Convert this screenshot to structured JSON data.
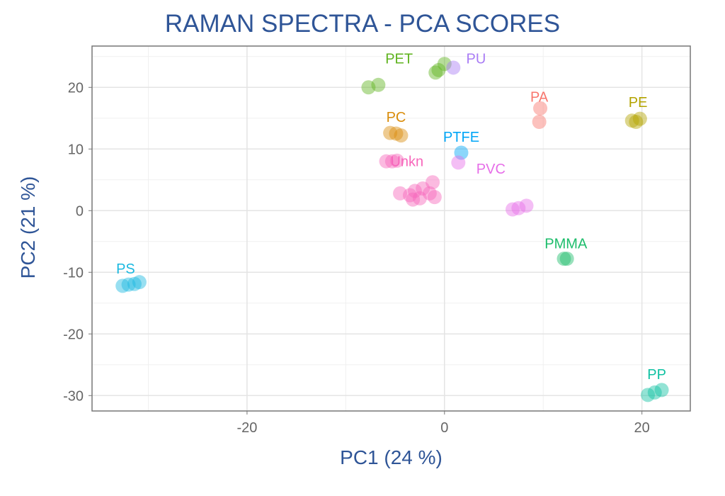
{
  "chart_data": {
    "type": "scatter",
    "title": "RAMAN SPECTRA - PCA SCORES",
    "xlabel": "PC1 (24 %)",
    "ylabel": "PC2 (21 %)",
    "xlim": [
      -35.7,
      24.9
    ],
    "ylim": [
      -32.5,
      26.7
    ],
    "xticks": [
      -20,
      0,
      20
    ],
    "yticks": [
      -30,
      -20,
      -10,
      0,
      10,
      20
    ],
    "grid": true,
    "legend": "none (direct labels)",
    "groups": [
      {
        "label": "PET",
        "color": "#5fb31e",
        "label_pos": [
          -4.6,
          24.7
        ],
        "points": [
          [
            -7.7,
            20.0
          ],
          [
            -6.7,
            20.4
          ],
          [
            -0.9,
            22.4
          ],
          [
            -0.6,
            22.8
          ],
          [
            0,
            23.8
          ]
        ]
      },
      {
        "label": "PU",
        "color": "#a97cf5",
        "label_pos": [
          3.2,
          24.7
        ],
        "points": [
          [
            0.9,
            23.2
          ]
        ]
      },
      {
        "label": "PC",
        "color": "#d98c0a",
        "label_pos": [
          -4.9,
          15.2
        ],
        "points": [
          [
            -5.5,
            12.6
          ],
          [
            -4.9,
            12.5
          ],
          [
            -4.4,
            12.2
          ]
        ]
      },
      {
        "label": "PTFE",
        "color": "#00a6f7",
        "label_pos": [
          1.7,
          12.0
        ],
        "points": [
          [
            1.7,
            9.4
          ]
        ]
      },
      {
        "label": "PVC",
        "color": "#e66ee8",
        "label_pos": [
          4.7,
          6.8
        ],
        "points": [
          [
            1.4,
            7.8
          ],
          [
            6.9,
            0.2
          ],
          [
            7.5,
            0.4
          ],
          [
            8.3,
            0.8
          ]
        ]
      },
      {
        "label": "Unkn",
        "color": "#f766bb",
        "label_pos": [
          -3.8,
          8.0
        ],
        "points": [
          [
            -5.9,
            8.0
          ],
          [
            -5.3,
            8.0
          ],
          [
            -4.8,
            8.1
          ],
          [
            -4.5,
            2.8
          ],
          [
            -3.5,
            2.5
          ],
          [
            -3.0,
            3.2
          ],
          [
            -2.5,
            2.0
          ],
          [
            -2.2,
            3.6
          ],
          [
            -1.5,
            2.8
          ],
          [
            -1.0,
            2.2
          ],
          [
            -1.2,
            4.6
          ],
          [
            -3.2,
            1.8
          ]
        ]
      },
      {
        "label": "PA",
        "color": "#f8766d",
        "label_pos": [
          9.6,
          18.5
        ],
        "points": [
          [
            9.7,
            16.6
          ],
          [
            9.6,
            14.4
          ]
        ]
      },
      {
        "label": "PE",
        "color": "#b3a300",
        "label_pos": [
          19.6,
          17.6
        ],
        "points": [
          [
            19.0,
            14.6
          ],
          [
            19.4,
            14.4
          ],
          [
            19.8,
            14.9
          ]
        ]
      },
      {
        "label": "PMMA",
        "color": "#1dbd6b",
        "label_pos": [
          12.3,
          -5.3
        ],
        "points": [
          [
            12.1,
            -7.8
          ],
          [
            12.4,
            -7.8
          ]
        ]
      },
      {
        "label": "PP",
        "color": "#0fc1a2",
        "label_pos": [
          21.5,
          -26.5
        ],
        "points": [
          [
            20.6,
            -29.9
          ],
          [
            21.3,
            -29.5
          ],
          [
            22.0,
            -29.1
          ]
        ]
      },
      {
        "label": "PS",
        "color": "#1ab8e0",
        "label_pos": [
          -32.3,
          -9.4
        ],
        "points": [
          [
            -32.6,
            -12.2
          ],
          [
            -32.0,
            -12.0
          ],
          [
            -31.4,
            -11.9
          ],
          [
            -30.9,
            -11.6
          ]
        ]
      }
    ]
  }
}
